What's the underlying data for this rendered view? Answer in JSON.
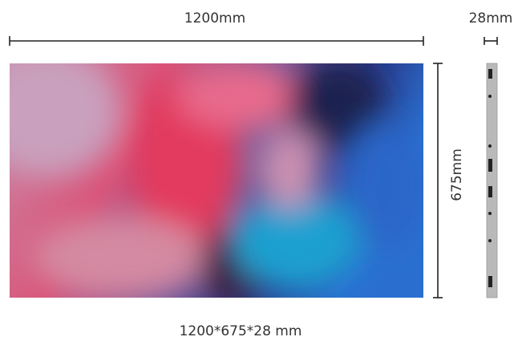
{
  "dimensions": {
    "width": "1200mm",
    "depth": "28mm",
    "height": "675mm"
  },
  "caption": "1200*675*28 mm"
}
